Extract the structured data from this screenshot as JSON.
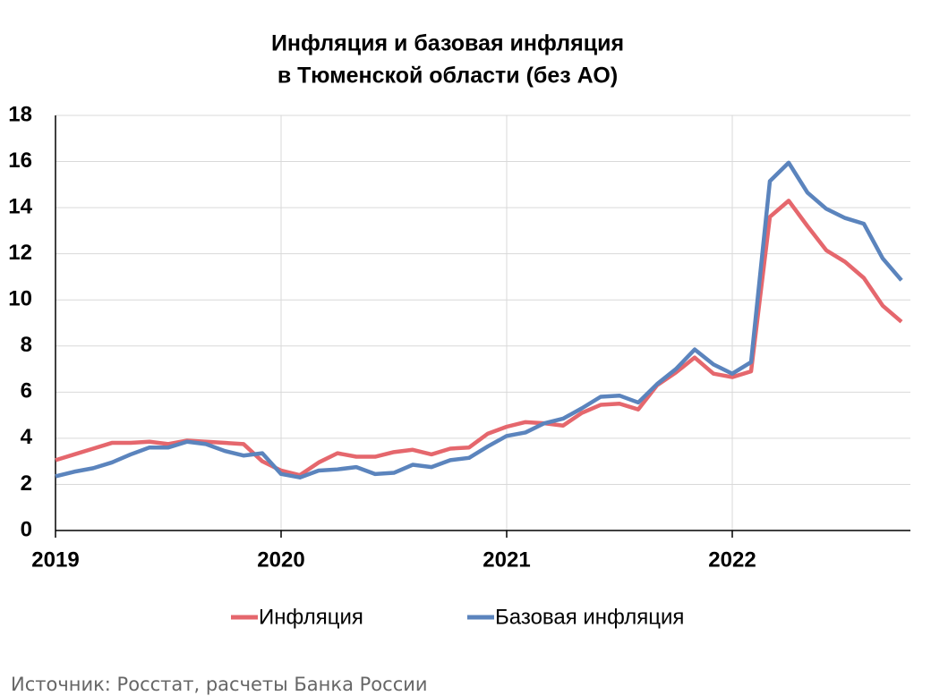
{
  "chart_data": {
    "type": "line",
    "title": "Инфляция и базовая инфляция",
    "subtitle": "в  Тюменской области (без АО)",
    "source": "Источник: Росстат, расчеты Банка России",
    "categories": [
      "2019",
      null,
      null,
      null,
      null,
      null,
      null,
      null,
      null,
      null,
      null,
      null,
      "2020",
      null,
      null,
      null,
      null,
      null,
      null,
      null,
      null,
      null,
      null,
      null,
      "2021",
      null,
      null,
      null,
      null,
      null,
      null,
      null,
      null,
      null,
      null,
      null,
      "2022",
      null,
      null,
      null,
      null,
      null,
      null,
      null,
      null,
      null
    ],
    "series": [
      {
        "name": "Инфляция",
        "color": "#e5676d",
        "values": [
          3.05,
          3.3,
          3.55,
          3.8,
          3.8,
          3.85,
          3.75,
          3.9,
          3.85,
          3.8,
          3.75,
          3.0,
          2.6,
          2.4,
          2.95,
          3.35,
          3.2,
          3.2,
          3.4,
          3.5,
          3.3,
          3.55,
          3.6,
          4.2,
          4.5,
          4.7,
          4.65,
          4.55,
          5.1,
          5.45,
          5.5,
          5.25,
          6.3,
          6.85,
          7.5,
          6.8,
          6.65,
          6.9,
          13.6,
          14.3,
          13.2,
          12.15,
          11.65,
          10.95,
          9.75,
          9.05
        ]
      },
      {
        "name": "Базовая инфляция",
        "color": "#5b84bd",
        "values": [
          2.35,
          2.55,
          2.7,
          2.95,
          3.3,
          3.6,
          3.6,
          3.85,
          3.75,
          3.45,
          3.25,
          3.35,
          2.45,
          2.3,
          2.6,
          2.65,
          2.75,
          2.45,
          2.5,
          2.85,
          2.75,
          3.05,
          3.15,
          3.65,
          4.1,
          4.25,
          4.65,
          4.85,
          5.3,
          5.8,
          5.85,
          5.55,
          6.35,
          7.0,
          7.85,
          7.2,
          6.8,
          7.3,
          15.15,
          15.95,
          14.65,
          13.95,
          13.55,
          13.3,
          11.8,
          10.85
        ]
      }
    ],
    "ylim": [
      0,
      18
    ],
    "yticks": [
      0,
      2,
      4,
      6,
      8,
      10,
      12,
      14,
      16,
      18
    ],
    "grid": true,
    "legend": "bottom"
  }
}
